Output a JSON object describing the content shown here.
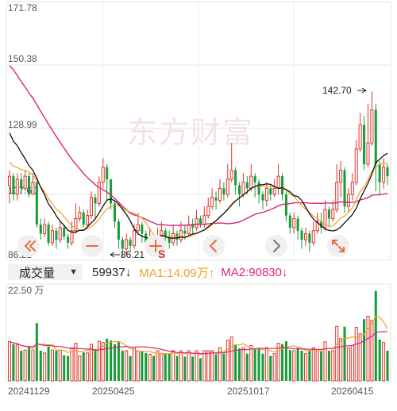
{
  "chart_data": {
    "type": "candlestick",
    "price_axis": {
      "ticks": [
        "171.78",
        "150.38",
        "128.99",
        "107.60",
        "86.21"
      ],
      "ylim": [
        86.21,
        171.78
      ]
    },
    "annotations": {
      "high_label": "142.70",
      "low_label": "86.21",
      "sell_marker": "S"
    },
    "watermark": "东方财富",
    "volume_axis": {
      "top_label": "22.50 万",
      "max": 225000
    },
    "date_labels": [
      "20241129",
      "20250425",
      "20251017",
      "20260415"
    ],
    "indicator": {
      "name": "成交量",
      "volume": "59937",
      "volume_dir": "↓",
      "ma1_label": "MA1:14.09万",
      "ma1_dir": "↑",
      "ma2_label": "MA2:90830",
      "ma2_dir": "↓"
    },
    "candles": [
      [
        111,
        114,
        116,
        105
      ],
      [
        114,
        108,
        115,
        106
      ],
      [
        108,
        113,
        115,
        106
      ],
      [
        113,
        110,
        115,
        108
      ],
      [
        110,
        114,
        116,
        109
      ],
      [
        114,
        108,
        115,
        107
      ],
      [
        108,
        112,
        115,
        108
      ],
      [
        112,
        98,
        113,
        97
      ],
      [
        98,
        95,
        100,
        93
      ],
      [
        95,
        98,
        100,
        94
      ],
      [
        98,
        92,
        99,
        91
      ],
      [
        92,
        96,
        98,
        91
      ],
      [
        96,
        93,
        97,
        90
      ],
      [
        93,
        97,
        99,
        92
      ],
      [
        97,
        94,
        98,
        93
      ],
      [
        94,
        92,
        95,
        90
      ],
      [
        92,
        96,
        99,
        91
      ],
      [
        96,
        100,
        105,
        95
      ],
      [
        100,
        102,
        104,
        99
      ],
      [
        102,
        98,
        103,
        97
      ],
      [
        98,
        101,
        103,
        97
      ],
      [
        101,
        107,
        109,
        100
      ],
      [
        107,
        105,
        108,
        100
      ],
      [
        105,
        112,
        114,
        104
      ],
      [
        112,
        117,
        120,
        110
      ],
      [
        117,
        113,
        118,
        106
      ],
      [
        113,
        105,
        113,
        103
      ],
      [
        105,
        99,
        106,
        97
      ],
      [
        99,
        93,
        100,
        90
      ],
      [
        93,
        90,
        94,
        87
      ],
      [
        90,
        93,
        95,
        88
      ],
      [
        93,
        91,
        94,
        89
      ],
      [
        91,
        96,
        98,
        90
      ],
      [
        96,
        98,
        102,
        95
      ],
      [
        98,
        95,
        99,
        92
      ],
      [
        95,
        92,
        96,
        90
      ],
      [
        92,
        93,
        97,
        91
      ],
      [
        93,
        91,
        94,
        89
      ],
      [
        91,
        94,
        97,
        90
      ],
      [
        94,
        96,
        99,
        93
      ],
      [
        96,
        94,
        97,
        91
      ],
      [
        94,
        92,
        96,
        90
      ],
      [
        92,
        95,
        98,
        91
      ],
      [
        95,
        93,
        96,
        91
      ],
      [
        93,
        96,
        99,
        92
      ],
      [
        96,
        95,
        98,
        93
      ],
      [
        95,
        98,
        101,
        94
      ],
      [
        98,
        97,
        100,
        95
      ],
      [
        97,
        100,
        103,
        96
      ],
      [
        100,
        98,
        101,
        97
      ],
      [
        98,
        101,
        104,
        97
      ],
      [
        101,
        104,
        107,
        100
      ],
      [
        104,
        107,
        110,
        103
      ],
      [
        107,
        106,
        109,
        103
      ],
      [
        106,
        110,
        113,
        105
      ],
      [
        110,
        108,
        112,
        106
      ],
      [
        108,
        113,
        118,
        107
      ],
      [
        113,
        116,
        125,
        112
      ],
      [
        116,
        111,
        117,
        108
      ],
      [
        111,
        108,
        112,
        104
      ],
      [
        108,
        112,
        115,
        107
      ],
      [
        112,
        110,
        114,
        108
      ],
      [
        110,
        114,
        118,
        109
      ],
      [
        114,
        112,
        115,
        107
      ],
      [
        112,
        108,
        113,
        105
      ],
      [
        108,
        106,
        109,
        103
      ],
      [
        106,
        110,
        112,
        104
      ],
      [
        110,
        108,
        111,
        106
      ],
      [
        108,
        110,
        113,
        107
      ],
      [
        110,
        114,
        118,
        108
      ],
      [
        114,
        108,
        115,
        106
      ],
      [
        108,
        101,
        109,
        99
      ],
      [
        101,
        97,
        102,
        95
      ],
      [
        97,
        100,
        102,
        95
      ],
      [
        100,
        96,
        101,
        93
      ],
      [
        96,
        93,
        97,
        90
      ],
      [
        93,
        95,
        97,
        91
      ],
      [
        95,
        92,
        96,
        89
      ],
      [
        92,
        96,
        99,
        91
      ],
      [
        96,
        99,
        102,
        95
      ],
      [
        99,
        97,
        102,
        95
      ],
      [
        97,
        103,
        106,
        96
      ],
      [
        103,
        100,
        104,
        97
      ],
      [
        100,
        103,
        106,
        99
      ],
      [
        103,
        112,
        118,
        102
      ],
      [
        112,
        116,
        119,
        107
      ],
      [
        116,
        104,
        117,
        102
      ],
      [
        104,
        108,
        110,
        102
      ],
      [
        108,
        112,
        115,
        106
      ],
      [
        112,
        123,
        126,
        111
      ],
      [
        123,
        131,
        135,
        122
      ],
      [
        131,
        118,
        134,
        116
      ],
      [
        118,
        125,
        138,
        117
      ],
      [
        125,
        136,
        142,
        124
      ],
      [
        136,
        118,
        138,
        109
      ],
      [
        118,
        112,
        119,
        108
      ],
      [
        112,
        117,
        120,
        110
      ],
      [
        117,
        114,
        118,
        111
      ]
    ],
    "ma_short": [
      128.3,
      125.6,
      124.1,
      121.8,
      119.8,
      117.5,
      116.0,
      113.3,
      110.3,
      107.8,
      104.8,
      103.1,
      100.9,
      99.1,
      97.7,
      96.1,
      95.5,
      95.5,
      96.1,
      96.1,
      97.2,
      98.6,
      99.9,
      101.9,
      104.1,
      106.1,
      106.5,
      105.9,
      104.8,
      103.1,
      101.4,
      99.2,
      96.7,
      94.9,
      94.2,
      93.7,
      93.4,
      93.8,
      93.9,
      94.5,
      94.1,
      93.6,
      93.5,
      93.6,
      93.9,
      93.7,
      94.3,
      94.9,
      95.1,
      95.7,
      96.2,
      97.3,
      98.3,
      99.3,
      100.6,
      101.7,
      103.0,
      104.5,
      105.8,
      106.9,
      107.8,
      108.8,
      110.0,
      110.6,
      111.1,
      111.2,
      111.5,
      111.3,
      110.6,
      110.0,
      110.2,
      109.6,
      108.8,
      107.6,
      107.3,
      106.0,
      103.8,
      101.6,
      99.8,
      98.7,
      97.7,
      96.5,
      96.1,
      95.9,
      96.3,
      97.2,
      98.6,
      99.9,
      101.3,
      103.4,
      106.5,
      109.2,
      111.7,
      114.7,
      118.5,
      119.6,
      120.8,
      121.6
    ]
  }
}
